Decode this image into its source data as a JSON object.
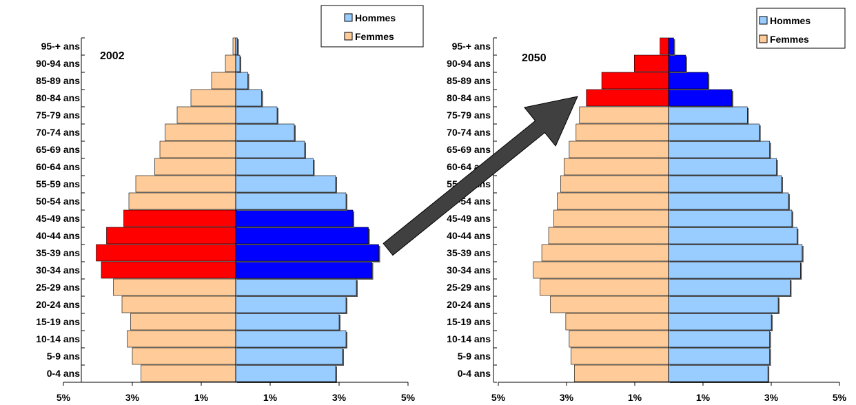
{
  "chart_data": [
    {
      "type": "bar",
      "orientation": "horizontal",
      "subtype": "population-pyramid",
      "title": "2002",
      "categories": [
        "0-4 ans",
        "5-9 ans",
        "10-14 ans",
        "15-19 ans",
        "20-24 ans",
        "25-29 ans",
        "30-34 ans",
        "35-39 ans",
        "40-44 ans",
        "45-49 ans",
        "50-54 ans",
        "55-59 ans",
        "60-64 ans",
        "65-69 ans",
        "70-74 ans",
        "75-79 ans",
        "80-84 ans",
        "85-89 ans",
        "90-94 ans",
        "95-+ ans"
      ],
      "series": [
        {
          "name": "Hommes",
          "color": "#99CCFF",
          "values": [
            2.9,
            3.1,
            3.2,
            3.0,
            3.2,
            3.5,
            3.95,
            4.15,
            3.85,
            3.4,
            3.2,
            2.9,
            2.25,
            2.0,
            1.7,
            1.2,
            0.75,
            0.35,
            0.12,
            0.05
          ],
          "highlight_color": "#0000FF",
          "highlighted_categories": [
            "30-34 ans",
            "35-39 ans",
            "40-44 ans",
            "45-49 ans"
          ]
        },
        {
          "name": "Femmes",
          "color": "#FFCC99",
          "values": [
            2.75,
            3.0,
            3.15,
            3.05,
            3.3,
            3.55,
            3.9,
            4.05,
            3.75,
            3.25,
            3.1,
            2.9,
            2.35,
            2.2,
            2.05,
            1.7,
            1.3,
            0.7,
            0.3,
            0.08
          ],
          "highlight_color": "#FF0000",
          "highlighted_categories": [
            "30-34 ans",
            "35-39 ans",
            "40-44 ans",
            "45-49 ans"
          ]
        }
      ],
      "xlim": [
        -5,
        5
      ],
      "x_tick_labels": [
        "5%",
        "3%",
        "1%",
        "1%",
        "3%",
        "5%"
      ],
      "legend": "top-right"
    },
    {
      "type": "bar",
      "orientation": "horizontal",
      "subtype": "population-pyramid",
      "title": "2050",
      "categories": [
        "0-4 ans",
        "5-9 ans",
        "10-14 ans",
        "15-19 ans",
        "20-24 ans",
        "25-29 ans",
        "30-34 ans",
        "35-39 ans",
        "40-44 ans",
        "45-49 ans",
        "50-54 ans",
        "55-59 ans",
        "60-64 ans",
        "65-69 ans",
        "70-74 ans",
        "75-79 ans",
        "80-84 ans",
        "85-89 ans",
        "90-94 ans",
        "95-+ ans"
      ],
      "series": [
        {
          "name": "Hommes",
          "color": "#99CCFF",
          "values": [
            2.9,
            2.95,
            2.95,
            3.0,
            3.2,
            3.55,
            3.85,
            3.9,
            3.75,
            3.6,
            3.5,
            3.3,
            3.15,
            2.95,
            2.65,
            2.3,
            1.85,
            1.15,
            0.5,
            0.15
          ],
          "highlight_color": "#0000FF",
          "highlighted_categories": [
            "80-84 ans",
            "85-89 ans",
            "90-94 ans",
            "95-+ ans"
          ]
        },
        {
          "name": "Femmes",
          "color": "#FFCC99",
          "values": [
            2.75,
            2.85,
            2.9,
            3.0,
            3.45,
            3.75,
            3.95,
            3.7,
            3.5,
            3.35,
            3.25,
            3.15,
            3.05,
            2.9,
            2.7,
            2.6,
            2.4,
            1.95,
            1.0,
            0.25
          ],
          "highlight_color": "#FF0000",
          "highlighted_categories": [
            "80-84 ans",
            "85-89 ans",
            "90-94 ans",
            "95-+ ans"
          ]
        }
      ],
      "xlim": [
        -5,
        5
      ],
      "x_tick_labels": [
        "5%",
        "3%",
        "1%",
        "1%",
        "3%",
        "5%"
      ],
      "legend": "top-right"
    }
  ],
  "legend": [
    {
      "label": "Hommes",
      "color": "#99CCFF"
    },
    {
      "label": "Femmes",
      "color": "#FFCC99"
    }
  ],
  "arrow_color": "#404040"
}
